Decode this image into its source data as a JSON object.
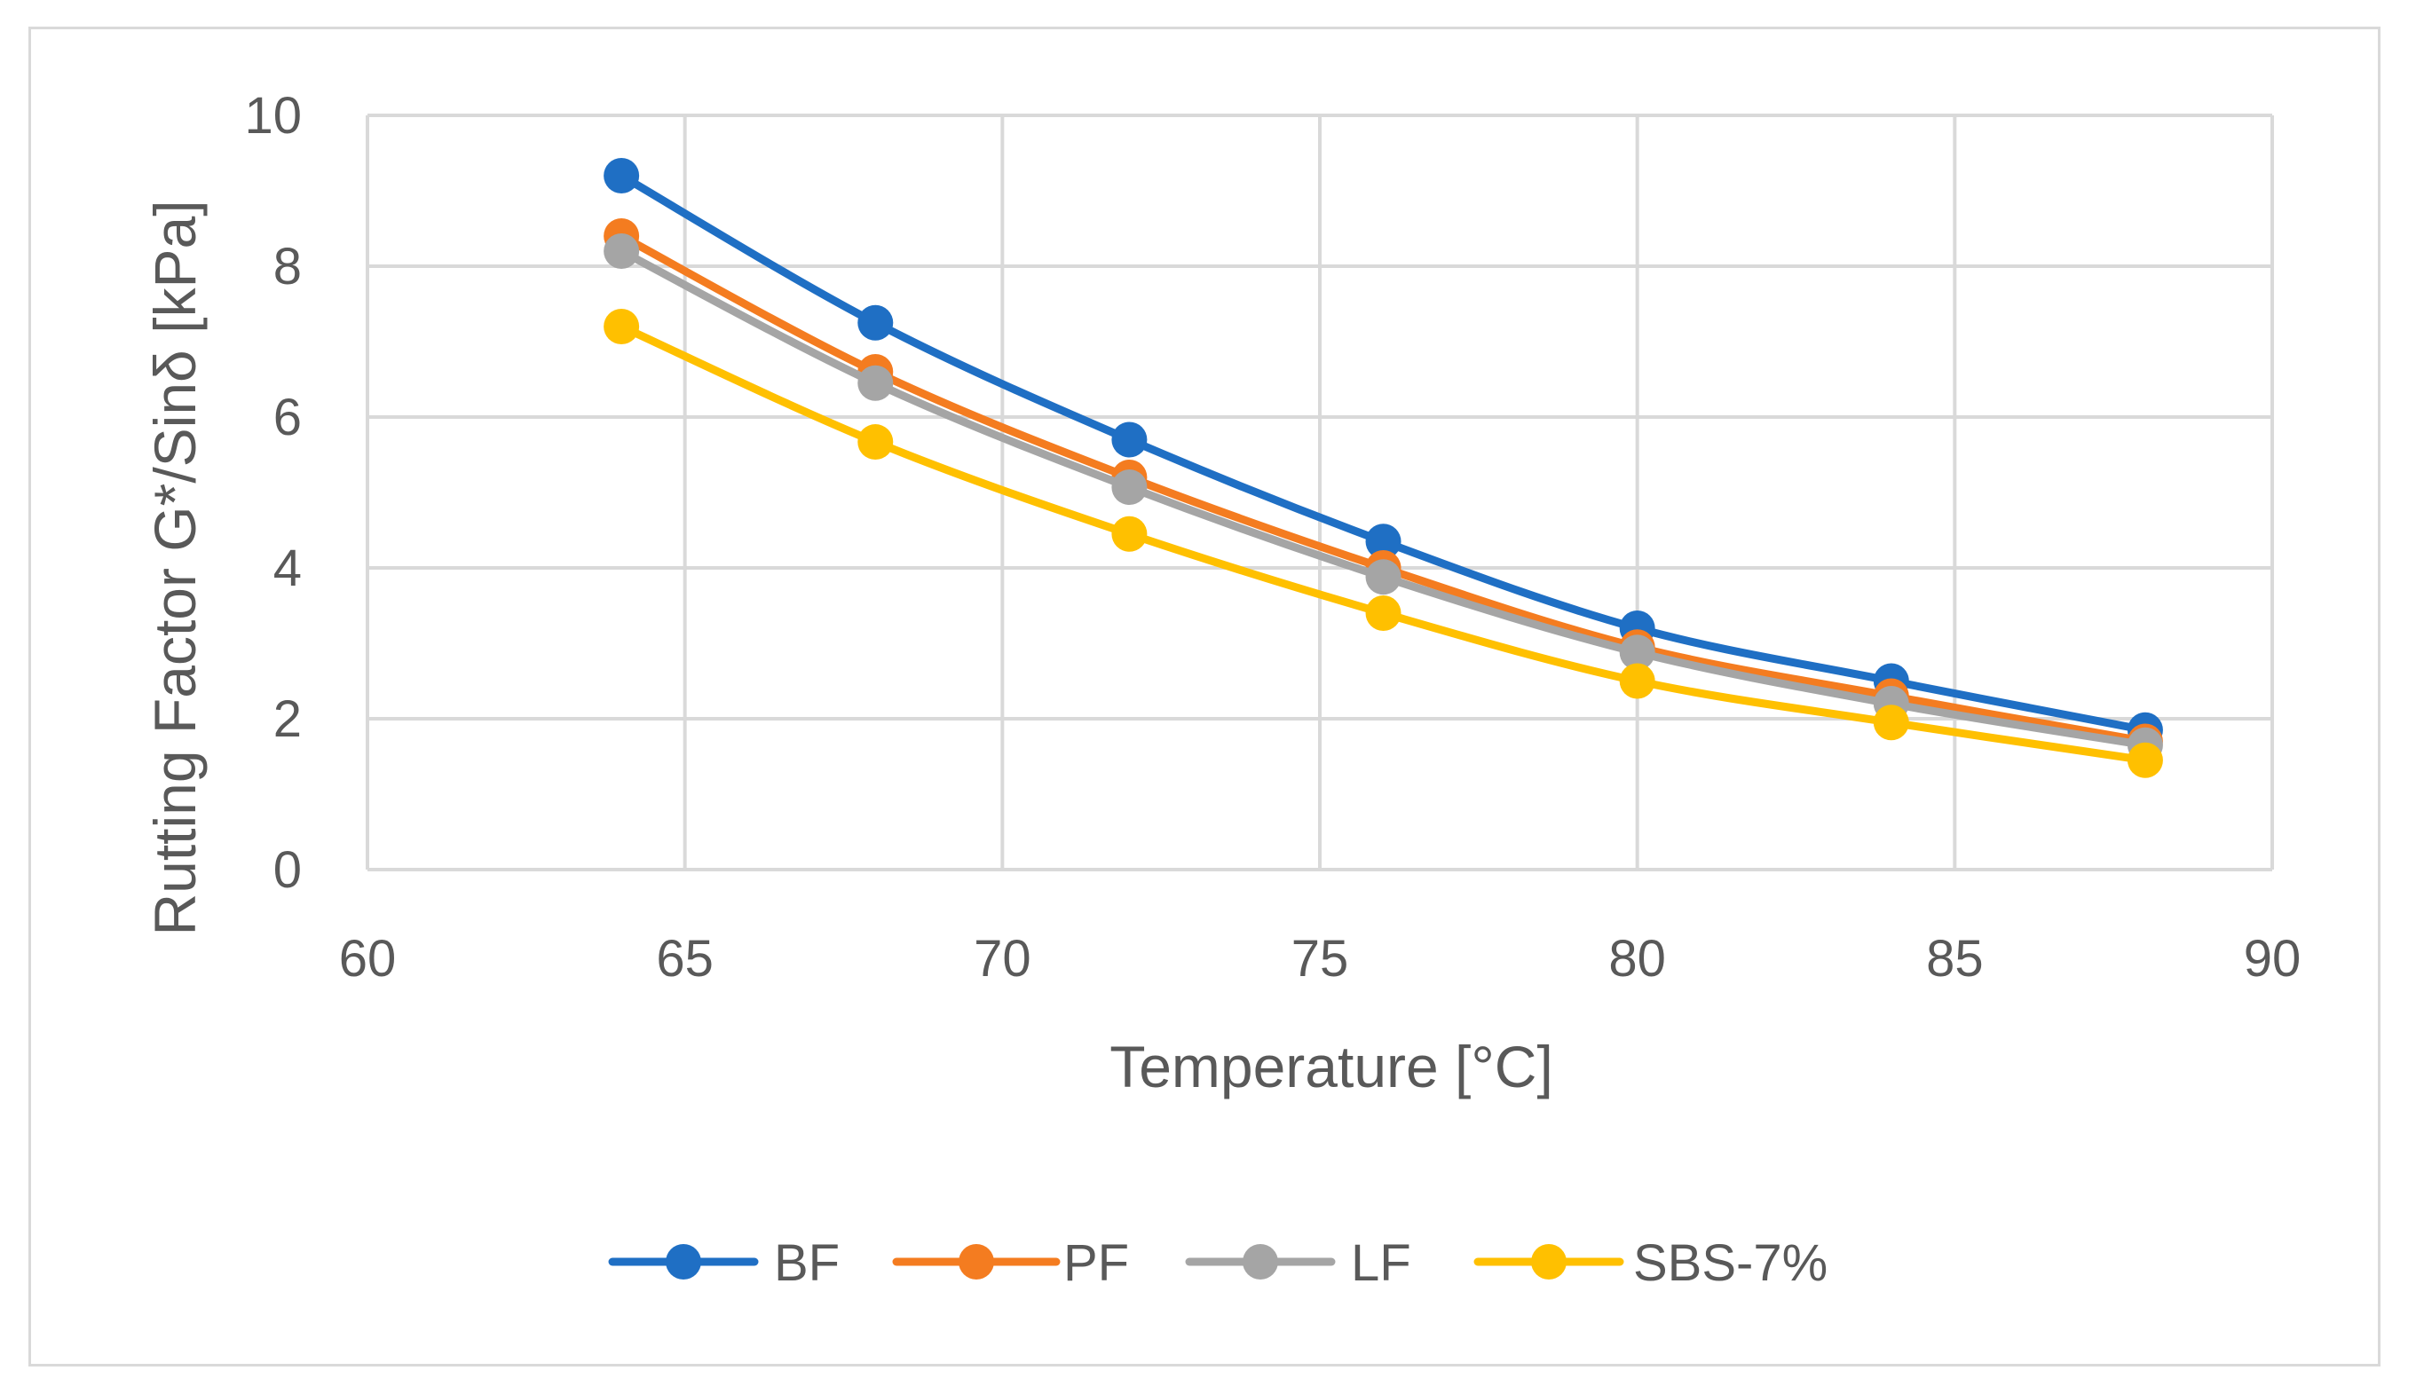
{
  "chart_data": {
    "type": "line",
    "title": "",
    "xlabel": "Temperature [°C]",
    "ylabel": "Rutting Factor G*/Sinδ [kPa]",
    "xlim": [
      60,
      90
    ],
    "ylim": [
      0,
      10
    ],
    "xticks": [
      60,
      65,
      70,
      75,
      80,
      85,
      90
    ],
    "yticks": [
      0,
      2,
      4,
      6,
      8,
      10
    ],
    "grid": true,
    "legend_position": "bottom",
    "x": [
      64,
      68,
      72,
      76,
      80,
      84,
      88
    ],
    "series": [
      {
        "name": "BF",
        "color": "#1f6fc4",
        "values": [
          9.2,
          7.25,
          5.7,
          4.35,
          3.2,
          2.5,
          1.85
        ]
      },
      {
        "name": "PF",
        "color": "#f47c20",
        "values": [
          8.4,
          6.6,
          5.2,
          4.0,
          2.95,
          2.3,
          1.7
        ]
      },
      {
        "name": "LF",
        "color": "#a5a5a5",
        "values": [
          8.2,
          6.45,
          5.07,
          3.88,
          2.88,
          2.2,
          1.65
        ]
      },
      {
        "name": "SBS-7%",
        "color": "#ffc000",
        "values": [
          7.2,
          5.67,
          4.45,
          3.4,
          2.5,
          1.95,
          1.45
        ]
      }
    ]
  }
}
